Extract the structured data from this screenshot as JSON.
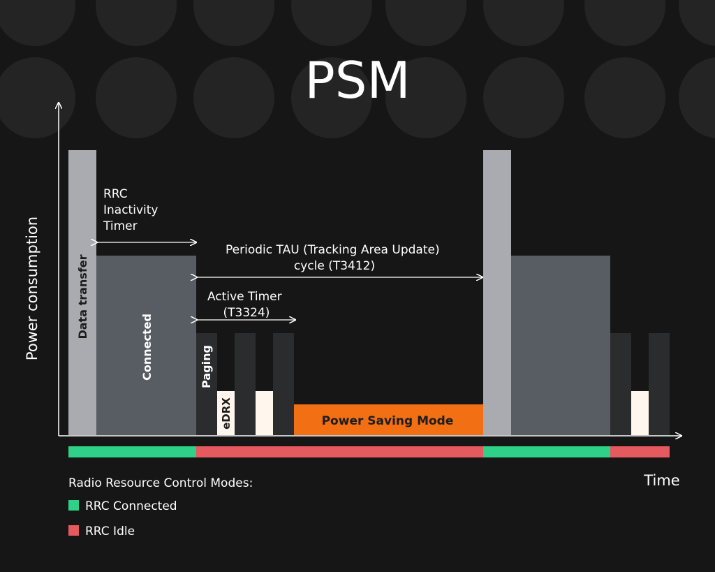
{
  "title": "PSM",
  "axes": {
    "y_label": "Power consumption",
    "x_label": "Time"
  },
  "blocks": {
    "data_transfer": "Data transfer",
    "connected": "Connected",
    "paging": "Paging",
    "edrx": "eDRX",
    "power_saving_mode": "Power Saving Mode"
  },
  "annotations": {
    "rrc_inactivity": [
      "RRC",
      "Inactivity",
      "Timer"
    ],
    "periodic_tau": [
      "Periodic TAU (Tracking Area Update)",
      "cycle (T3412)"
    ],
    "active_timer": [
      "Active Timer",
      "(T3324)"
    ]
  },
  "legend": {
    "title": "Radio Resource Control Modes:",
    "items": [
      {
        "label": "RRC Connected",
        "color": "#2fd087"
      },
      {
        "label": "RRC Idle",
        "color": "#e55a5e"
      }
    ]
  },
  "colors": {
    "background": "#161616",
    "data_transfer": "#a9abb0",
    "connected": "#575d62",
    "paging": "#2b2c2e",
    "edrx": "#fff6ee",
    "power_saving": "#f36f13",
    "rrc_connected": "#2fd087",
    "rrc_idle": "#e55a5e"
  }
}
